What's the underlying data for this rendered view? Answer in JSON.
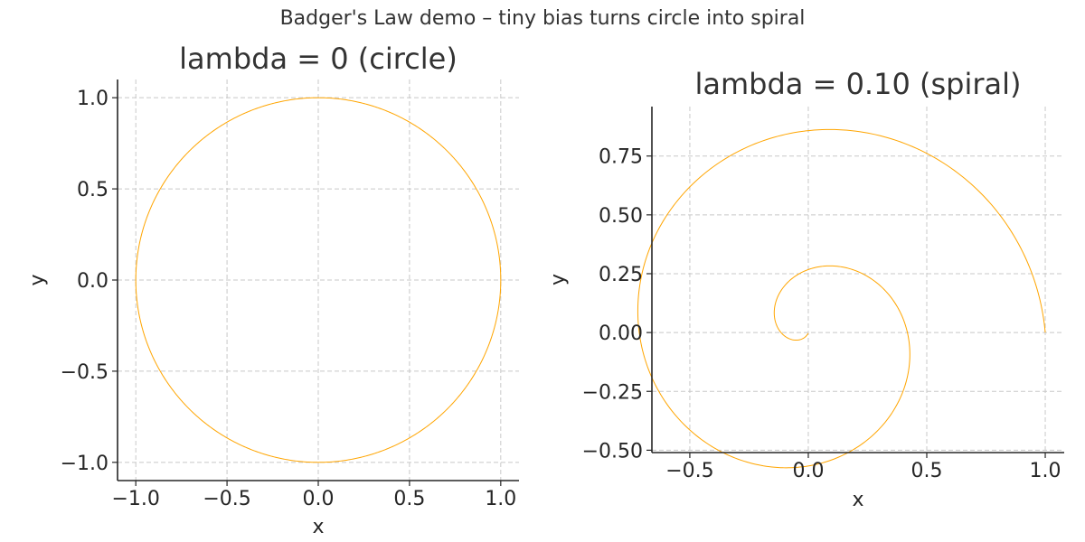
{
  "suptitle": "Badger's Law demo – tiny bias turns circle into spiral",
  "colors": {
    "curve": "#FFA500",
    "grid": "#c8c8c8",
    "axis": "#262626"
  },
  "chart_data": [
    {
      "type": "line",
      "title": "lambda = 0  (circle)",
      "xlabel": "x",
      "ylabel": "y",
      "xlim": [
        -1.1,
        1.1
      ],
      "ylim": [
        -1.1,
        1.1
      ],
      "xticks": [
        -1.0,
        -0.5,
        0.0,
        0.5,
        1.0
      ],
      "xtick_labels": [
        "−1.0",
        "−0.5",
        "0.0",
        "0.5",
        "1.0"
      ],
      "yticks": [
        -1.0,
        -0.5,
        0.0,
        0.5,
        1.0
      ],
      "ytick_labels": [
        "−1.0",
        "−0.5",
        "0.0",
        "0.5",
        "1.0"
      ],
      "grid": true,
      "series": [
        {
          "curve": "circle",
          "lambda": 0.0,
          "radius": 1.0,
          "start": [
            1.0,
            0.0
          ]
        }
      ]
    },
    {
      "type": "line",
      "title": "lambda = 0.10  (spiral)",
      "xlabel": "x",
      "ylabel": "y",
      "xlim": [
        -0.66,
        1.08
      ],
      "ylim": [
        -0.51,
        0.96
      ],
      "xticks": [
        -0.5,
        0.0,
        0.5,
        1.0
      ],
      "xtick_labels": [
        "−0.5",
        "0.0",
        "0.5",
        "1.0"
      ],
      "yticks": [
        -0.5,
        -0.25,
        0.0,
        0.25,
        0.5,
        0.75
      ],
      "ytick_labels": [
        "−0.50",
        "−0.25",
        "0.00",
        "0.25",
        "0.50",
        "0.75"
      ],
      "grid": true,
      "series": [
        {
          "curve": "spiral",
          "lambda": 0.1,
          "start": [
            1.0,
            0.0
          ],
          "end": [
            0.0,
            0.0
          ]
        }
      ]
    }
  ]
}
